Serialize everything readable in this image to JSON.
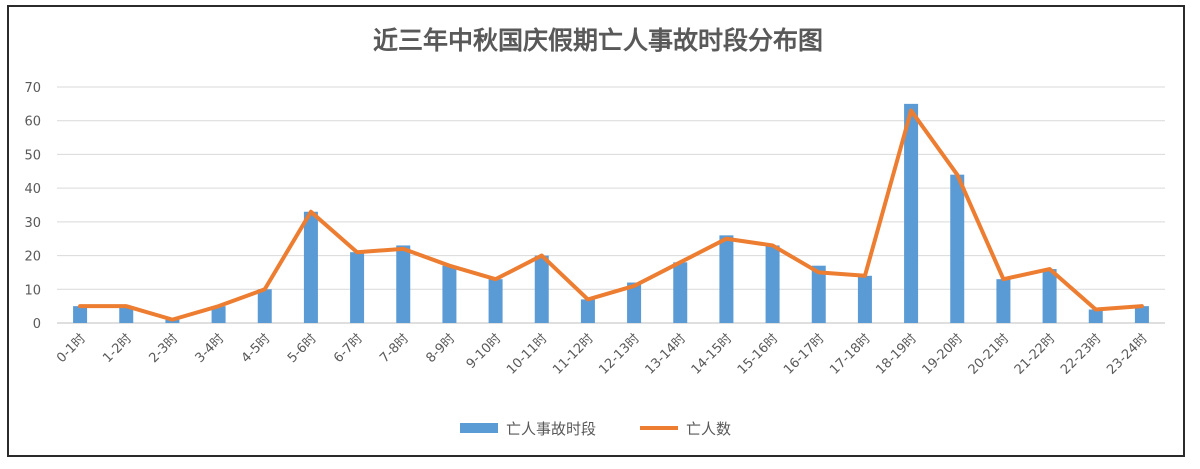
{
  "chart_data": {
    "type": "bar",
    "title": "近三年中秋国庆假期亡人事故时段分布图",
    "categories": [
      "0-1时",
      "1-2时",
      "2-3时",
      "3-4时",
      "4-5时",
      "5-6时",
      "6-7时",
      "7-8时",
      "8-9时",
      "9-10时",
      "10-11时",
      "11-12时",
      "12-13时",
      "13-14时",
      "14-15时",
      "15-16时",
      "16-17时",
      "17-18时",
      "18-19时",
      "19-20时",
      "20-21时",
      "21-22时",
      "22-23时",
      "23-24时"
    ],
    "series": [
      {
        "name": "亡人事故时段",
        "type": "bar",
        "color": "#5b9bd5",
        "values": [
          5,
          5,
          1,
          5,
          10,
          33,
          21,
          23,
          17,
          13,
          20,
          7,
          12,
          18,
          26,
          23,
          17,
          14,
          65,
          44,
          13,
          16,
          4,
          5
        ]
      },
      {
        "name": "亡人数",
        "type": "line",
        "color": "#ed7d31",
        "values": [
          5,
          5,
          1,
          5,
          10,
          33,
          21,
          22,
          17,
          13,
          20,
          7,
          11,
          18,
          25,
          23,
          15,
          14,
          63,
          44,
          13,
          16,
          4,
          5
        ]
      }
    ],
    "ylim": [
      0,
      70
    ],
    "yticks": [
      0,
      10,
      20,
      30,
      40,
      50,
      60,
      70
    ],
    "xlabel": "",
    "ylabel": "",
    "grid": true,
    "legend": "bottom"
  }
}
